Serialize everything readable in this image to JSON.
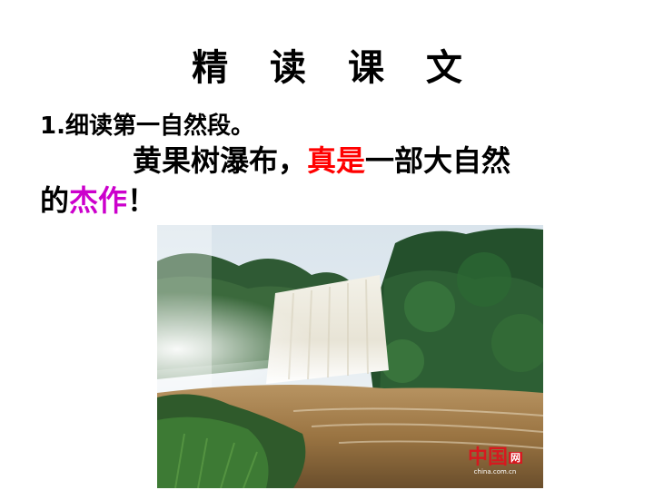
{
  "title": "精 读 课 文",
  "step_label": "1.细读第一自然段。",
  "sentence": {
    "part1": "黄果树瀑布，",
    "highlight1": "真是",
    "part2": "一部大自然",
    "part3": "的",
    "highlight2": "杰作",
    "part4": "！"
  },
  "colors": {
    "highlight1": "#ff0000",
    "highlight2": "#cc00cc"
  },
  "photo": {
    "subject": "waterfall-photo",
    "watermark_logo": "中国",
    "watermark_badge": "网",
    "watermark_url": "china.com.cn"
  }
}
